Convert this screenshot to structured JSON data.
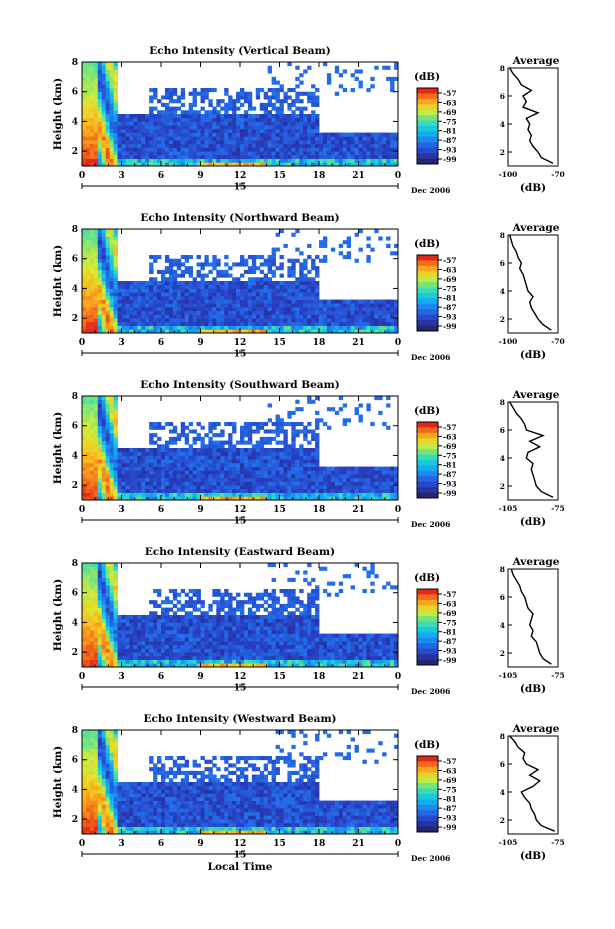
{
  "chart_data": [
    {
      "type": "heatmap",
      "title": "Echo Intensity (Vertical Beam)",
      "ylabel": "Height (km)",
      "colorbar_label": "(dB)",
      "colorbar_ticks": [
        "-57",
        "-63",
        "-69",
        "-75",
        "-81",
        "-87",
        "-93",
        "-99"
      ],
      "x_ticks": [
        "0",
        "3",
        "6",
        "9",
        "12",
        "15",
        "18",
        "21",
        "0"
      ],
      "y_ticks": [
        "2",
        "4",
        "6",
        "8"
      ],
      "date_tick": "15",
      "date_label": "Dec 2006",
      "xlim": [
        0,
        24
      ],
      "ylim": [
        1,
        8
      ],
      "profile": {
        "title": "Average",
        "xlabel": "(dB)",
        "x_ticks": [
          "-100",
          "-70"
        ],
        "xlim": [
          -100,
          -70
        ],
        "y_ticks": [
          "2",
          "4",
          "6",
          "8"
        ],
        "ylim": [
          1,
          8
        ],
        "heights": [
          1.2,
          1.6,
          2.0,
          2.4,
          2.8,
          3.2,
          3.6,
          4.0,
          4.4,
          4.8,
          5.2,
          5.6,
          6.0,
          6.4,
          6.8,
          7.2,
          7.6,
          8.0
        ],
        "values": [
          -73,
          -80,
          -82,
          -85,
          -87,
          -86,
          -88,
          -87,
          -89,
          -82,
          -91,
          -89,
          -91,
          -86,
          -92,
          -94,
          -97,
          -99
        ]
      }
    },
    {
      "type": "heatmap",
      "title": "Echo Intensity (Northward Beam)",
      "ylabel": "Height (km)",
      "colorbar_label": "(dB)",
      "colorbar_ticks": [
        "-57",
        "-63",
        "-69",
        "-75",
        "-81",
        "-87",
        "-93",
        "-99"
      ],
      "x_ticks": [
        "0",
        "3",
        "6",
        "9",
        "12",
        "15",
        "18",
        "21",
        "0"
      ],
      "y_ticks": [
        "2",
        "4",
        "6",
        "8"
      ],
      "date_tick": "15",
      "date_label": "Dec 2006",
      "xlim": [
        0,
        24
      ],
      "ylim": [
        1,
        8
      ],
      "profile": {
        "title": "Average",
        "xlabel": "(dB)",
        "x_ticks": [
          "-100",
          "-70"
        ],
        "xlim": [
          -100,
          -70
        ],
        "y_ticks": [
          "2",
          "4",
          "6",
          "8"
        ],
        "ylim": [
          1,
          8
        ],
        "heights": [
          1.2,
          1.6,
          2.0,
          2.4,
          2.8,
          3.2,
          3.6,
          4.0,
          4.4,
          4.8,
          5.2,
          5.6,
          6.0,
          6.4,
          6.8,
          7.2,
          7.6,
          8.0
        ],
        "values": [
          -74,
          -79,
          -82,
          -84,
          -86,
          -87,
          -85,
          -88,
          -89,
          -90,
          -91,
          -93,
          -92,
          -94,
          -95,
          -97,
          -98,
          -99
        ]
      }
    },
    {
      "type": "heatmap",
      "title": "Echo Intensity (Southward Beam)",
      "ylabel": "Height (km)",
      "colorbar_label": "(dB)",
      "colorbar_ticks": [
        "-57",
        "-63",
        "-69",
        "-75",
        "-81",
        "-87",
        "-93",
        "-99"
      ],
      "x_ticks": [
        "0",
        "3",
        "6",
        "9",
        "12",
        "15",
        "18",
        "21",
        "0"
      ],
      "y_ticks": [
        "2",
        "4",
        "6",
        "8"
      ],
      "date_tick": "15",
      "date_label": "Dec 2006",
      "xlim": [
        0,
        24
      ],
      "ylim": [
        1,
        8
      ],
      "profile": {
        "title": "Average",
        "xlabel": "(dB)",
        "x_ticks": [
          "-105",
          "-75"
        ],
        "xlim": [
          -105,
          -75
        ],
        "y_ticks": [
          "2",
          "4",
          "6",
          "8"
        ],
        "ylim": [
          1,
          8
        ],
        "heights": [
          1.2,
          1.6,
          2.0,
          2.4,
          2.8,
          3.2,
          3.6,
          4.0,
          4.4,
          4.8,
          5.2,
          5.6,
          6.0,
          6.4,
          6.8,
          7.2,
          7.6,
          8.0
        ],
        "values": [
          -78,
          -85,
          -88,
          -89,
          -90,
          -91,
          -90,
          -94,
          -93,
          -86,
          -92,
          -84,
          -94,
          -95,
          -97,
          -100,
          -102,
          -104
        ]
      }
    },
    {
      "type": "heatmap",
      "title": "Echo Intensity (Eastward Beam)",
      "ylabel": "Height (km)",
      "colorbar_label": "(dB)",
      "colorbar_ticks": [
        "-57",
        "-63",
        "-69",
        "-75",
        "-81",
        "-87",
        "-93",
        "-99"
      ],
      "x_ticks": [
        "0",
        "3",
        "6",
        "9",
        "12",
        "15",
        "18",
        "21",
        "0"
      ],
      "y_ticks": [
        "2",
        "4",
        "6",
        "8"
      ],
      "date_tick": "15",
      "date_label": "Dec 2006",
      "xlim": [
        0,
        24
      ],
      "ylim": [
        1,
        8
      ],
      "profile": {
        "title": "Average",
        "xlabel": "(dB)",
        "x_ticks": [
          "-105",
          "-75"
        ],
        "xlim": [
          -105,
          -75
        ],
        "y_ticks": [
          "2",
          "4",
          "6",
          "8"
        ],
        "ylim": [
          1,
          8
        ],
        "heights": [
          1.2,
          1.6,
          2.0,
          2.4,
          2.8,
          3.2,
          3.6,
          4.0,
          4.4,
          4.8,
          5.2,
          5.6,
          6.0,
          6.4,
          6.8,
          7.2,
          7.6,
          8.0
        ],
        "values": [
          -79,
          -84,
          -86,
          -87,
          -88,
          -91,
          -90,
          -92,
          -91,
          -90,
          -93,
          -94,
          -95,
          -97,
          -98,
          -100,
          -102,
          -103
        ]
      }
    },
    {
      "type": "heatmap",
      "title": "Echo Intensity (Westward Beam)",
      "ylabel": "Height (km)",
      "colorbar_label": "(dB)",
      "colorbar_ticks": [
        "-57",
        "-63",
        "-69",
        "-75",
        "-81",
        "-87",
        "-93",
        "-99"
      ],
      "x_ticks": [
        "0",
        "3",
        "6",
        "9",
        "12",
        "15",
        "18",
        "21",
        "0"
      ],
      "y_ticks": [
        "2",
        "4",
        "6",
        "8"
      ],
      "date_tick": "15",
      "date_label": "Dec 2006",
      "xlabel": "Local Time",
      "xlim": [
        0,
        24
      ],
      "ylim": [
        1,
        8
      ],
      "profile": {
        "title": "Average",
        "xlabel": "(dB)",
        "x_ticks": [
          "-105",
          "-75"
        ],
        "xlim": [
          -105,
          -75
        ],
        "y_ticks": [
          "2",
          "4",
          "6",
          "8"
        ],
        "ylim": [
          1,
          8
        ],
        "heights": [
          1.2,
          1.6,
          2.0,
          2.4,
          2.8,
          3.2,
          3.6,
          4.0,
          4.4,
          4.8,
          5.2,
          5.6,
          6.0,
          6.4,
          6.8,
          7.2,
          7.6,
          8.0
        ],
        "values": [
          -77,
          -85,
          -88,
          -89,
          -91,
          -92,
          -95,
          -97,
          -90,
          -86,
          -92,
          -87,
          -94,
          -96,
          -95,
          -99,
          -101,
          -104
        ]
      }
    }
  ]
}
